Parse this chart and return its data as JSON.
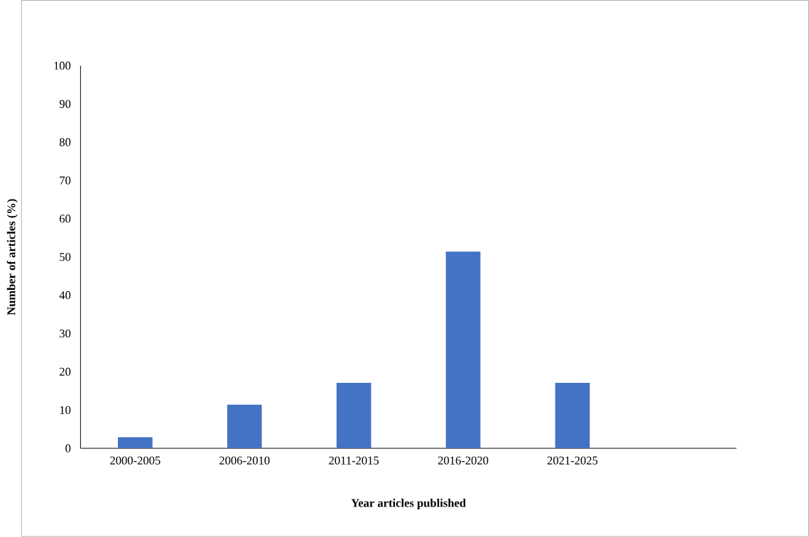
{
  "chart_data": {
    "type": "bar",
    "xlabel": "Year articles published",
    "ylabel": "Number of articles (%)",
    "categories": [
      "2000-2005",
      "2006-2010",
      "2011-2015",
      "2016-2020",
      "2021-2025",
      null
    ],
    "values": [
      2.9,
      11.4,
      17.1,
      51.4,
      17.1,
      null
    ],
    "color": "#4472c4",
    "ylim": [
      0,
      100
    ],
    "yticks": [
      0,
      10,
      20,
      30,
      40,
      50,
      60,
      70,
      80,
      90,
      100
    ]
  }
}
